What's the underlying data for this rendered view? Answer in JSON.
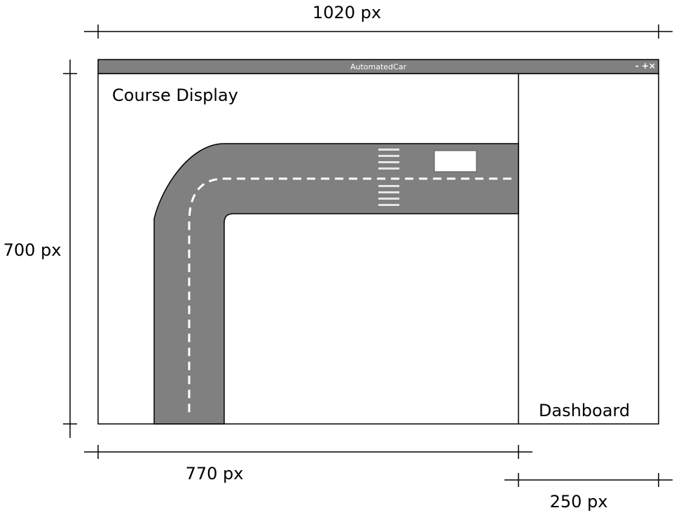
{
  "dimensions": {
    "total_width": "1020 px",
    "total_height": "700 px",
    "course_width": "770 px",
    "dashboard_width": "250 px"
  },
  "window": {
    "title": "AutomatedCar",
    "controls": "- +×",
    "titlebar_color": "#808080"
  },
  "panels": {
    "course_label": "Course Display",
    "dashboard_label": "Dashboard"
  },
  "colors": {
    "road": "#808080",
    "lane_marking": "#ffffff",
    "crosswalk": "#e6e6e6",
    "car": "#ffffff",
    "line": "#000000"
  }
}
